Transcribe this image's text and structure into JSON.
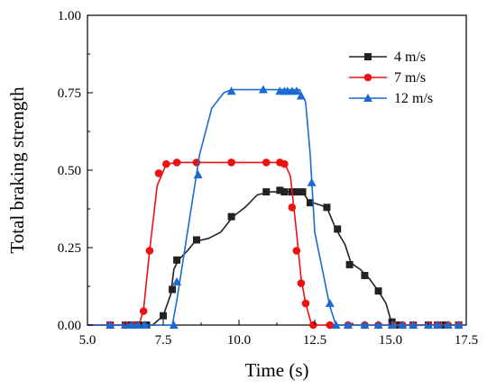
{
  "chart_data": {
    "type": "line",
    "title": "",
    "xlabel": "Time (s)",
    "ylabel": "Total braking strength",
    "xlim": [
      5.0,
      17.5
    ],
    "ylim": [
      0.0,
      1.0
    ],
    "xticks": [
      "5.0",
      "7.5",
      "10.0",
      "12.5",
      "15.0",
      "17.5"
    ],
    "yticks": [
      "0.00",
      "0.25",
      "0.50",
      "0.75",
      "1.00"
    ],
    "grid": false,
    "legend_position": "top-right",
    "series": [
      {
        "name": "4 m/s",
        "color": "#222222",
        "marker": "square",
        "line": [
          [
            5.0,
            0
          ],
          [
            7.15,
            0
          ],
          [
            7.5,
            0.03
          ],
          [
            7.75,
            0.1
          ],
          [
            7.85,
            0.18
          ],
          [
            8.0,
            0.21
          ],
          [
            8.3,
            0.24
          ],
          [
            8.55,
            0.27
          ],
          [
            9.0,
            0.28
          ],
          [
            9.4,
            0.3
          ],
          [
            9.8,
            0.35
          ],
          [
            10.2,
            0.38
          ],
          [
            10.6,
            0.42
          ],
          [
            11.0,
            0.43
          ],
          [
            11.4,
            0.43
          ],
          [
            12.1,
            0.43
          ],
          [
            12.3,
            0.4
          ],
          [
            12.9,
            0.38
          ],
          [
            13.2,
            0.31
          ],
          [
            13.5,
            0.26
          ],
          [
            13.7,
            0.2
          ],
          [
            14.0,
            0.18
          ],
          [
            14.3,
            0.15
          ],
          [
            14.6,
            0.11
          ],
          [
            14.85,
            0.07
          ],
          [
            15.0,
            0.02
          ],
          [
            15.1,
            0
          ],
          [
            17.5,
            0
          ]
        ],
        "points": [
          [
            5.75,
            0
          ],
          [
            6.25,
            0
          ],
          [
            6.4,
            0
          ],
          [
            6.55,
            0
          ],
          [
            6.7,
            0
          ],
          [
            6.95,
            0
          ],
          [
            7.5,
            0.03
          ],
          [
            7.8,
            0.115
          ],
          [
            7.95,
            0.21
          ],
          [
            8.6,
            0.275
          ],
          [
            9.75,
            0.35
          ],
          [
            10.9,
            0.43
          ],
          [
            11.35,
            0.435
          ],
          [
            11.5,
            0.43
          ],
          [
            11.75,
            0.43
          ],
          [
            11.9,
            0.43
          ],
          [
            12.1,
            0.43
          ],
          [
            12.35,
            0.395
          ],
          [
            12.9,
            0.38
          ],
          [
            13.25,
            0.31
          ],
          [
            13.65,
            0.195
          ],
          [
            14.15,
            0.16
          ],
          [
            14.6,
            0.11
          ],
          [
            15.05,
            0.01
          ],
          [
            15.3,
            0
          ],
          [
            15.75,
            0
          ],
          [
            16.25,
            0
          ],
          [
            16.55,
            0
          ],
          [
            16.8,
            0
          ],
          [
            17.25,
            0
          ]
        ]
      },
      {
        "name": "7 m/s",
        "color": "#ee1111",
        "marker": "circle",
        "line": [
          [
            5.0,
            0
          ],
          [
            6.7,
            0
          ],
          [
            6.85,
            0.05
          ],
          [
            7.05,
            0.24
          ],
          [
            7.3,
            0.45
          ],
          [
            7.6,
            0.52
          ],
          [
            8.0,
            0.525
          ],
          [
            11.5,
            0.525
          ],
          [
            11.7,
            0.48
          ],
          [
            11.9,
            0.3
          ],
          [
            12.05,
            0.15
          ],
          [
            12.2,
            0.07
          ],
          [
            12.4,
            0
          ],
          [
            17.5,
            0
          ]
        ],
        "points": [
          [
            5.75,
            0
          ],
          [
            6.25,
            0
          ],
          [
            6.5,
            0
          ],
          [
            6.85,
            0.045
          ],
          [
            7.05,
            0.24
          ],
          [
            7.35,
            0.49
          ],
          [
            7.6,
            0.52
          ],
          [
            7.95,
            0.525
          ],
          [
            8.6,
            0.525
          ],
          [
            9.75,
            0.525
          ],
          [
            10.9,
            0.525
          ],
          [
            11.35,
            0.525
          ],
          [
            11.5,
            0.52
          ],
          [
            11.75,
            0.38
          ],
          [
            11.9,
            0.24
          ],
          [
            12.05,
            0.135
          ],
          [
            12.2,
            0.07
          ],
          [
            12.45,
            0
          ],
          [
            13.0,
            0
          ],
          [
            13.6,
            0
          ],
          [
            14.15,
            0
          ],
          [
            14.6,
            0
          ],
          [
            15.05,
            0
          ],
          [
            15.4,
            0
          ],
          [
            15.75,
            0
          ],
          [
            16.25,
            0
          ],
          [
            16.55,
            0
          ],
          [
            16.9,
            0
          ],
          [
            17.25,
            0
          ]
        ]
      },
      {
        "name": "12 m/s",
        "color": "#1a6ad1",
        "marker": "triangle",
        "line": [
          [
            5.0,
            0
          ],
          [
            7.8,
            0
          ],
          [
            7.95,
            0.08
          ],
          [
            8.3,
            0.3
          ],
          [
            8.7,
            0.55
          ],
          [
            9.1,
            0.7
          ],
          [
            9.5,
            0.75
          ],
          [
            9.75,
            0.76
          ],
          [
            12.0,
            0.76
          ],
          [
            12.2,
            0.72
          ],
          [
            12.35,
            0.55
          ],
          [
            12.5,
            0.3
          ],
          [
            12.75,
            0.18
          ],
          [
            13.0,
            0.06
          ],
          [
            13.2,
            0
          ],
          [
            17.5,
            0
          ]
        ],
        "points": [
          [
            5.75,
            0
          ],
          [
            6.25,
            0
          ],
          [
            6.45,
            0
          ],
          [
            6.65,
            0
          ],
          [
            6.9,
            0
          ],
          [
            7.85,
            0
          ],
          [
            7.95,
            0.14
          ],
          [
            8.65,
            0.485
          ],
          [
            9.75,
            0.755
          ],
          [
            10.8,
            0.76
          ],
          [
            11.35,
            0.755
          ],
          [
            11.5,
            0.755
          ],
          [
            11.6,
            0.755
          ],
          [
            11.75,
            0.755
          ],
          [
            11.9,
            0.755
          ],
          [
            12.05,
            0.74
          ],
          [
            12.4,
            0.46
          ],
          [
            13.0,
            0.07
          ],
          [
            13.2,
            0
          ],
          [
            13.6,
            0
          ],
          [
            14.15,
            0
          ],
          [
            14.6,
            0
          ],
          [
            15.05,
            0
          ],
          [
            15.4,
            0
          ],
          [
            15.75,
            0
          ],
          [
            16.25,
            0
          ],
          [
            16.55,
            0
          ],
          [
            16.9,
            0
          ],
          [
            17.25,
            0
          ]
        ]
      }
    ]
  }
}
